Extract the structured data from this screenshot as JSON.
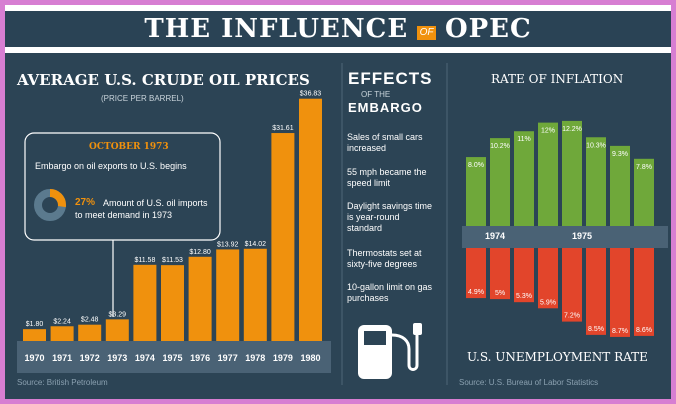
{
  "title": {
    "left": "THE INFLUENCE",
    "of": "OF",
    "right": "OPEC"
  },
  "oil": {
    "title": "AVERAGE U.S. CRUDE OIL PRICES",
    "subtitle": "(PRICE PER BARREL)",
    "source": "Source: British Petroleum",
    "callout": {
      "heading": "OCTOBER 1973",
      "text": "Embargo on oil exports to U.S. begins",
      "percent": "27%",
      "percent_text": "Amount of U.S. oil imports to meet demand in 1973"
    }
  },
  "effects": {
    "heading_line1": "EFFECTS",
    "heading_line2": "OF THE",
    "heading_line3": "EMBARGO",
    "items": [
      "Sales of small cars increased",
      "55 mph became the speed limit",
      "Daylight savings time is year-round standard",
      "Thermostats set at sixty-five degrees",
      "10-gallon limit on gas purchases"
    ]
  },
  "inflation": {
    "title": "RATE OF INFLATION",
    "unemployment_title": "U.S. UNEMPLOYMENT RATE",
    "source": "Source: U.S. Bureau of Labor Statistics",
    "year_labels": [
      "1974",
      "1975"
    ]
  },
  "colors": {
    "background": "#2c4455",
    "oil_bar": "#f0910d",
    "inflation_bar": "#6fa83a",
    "unemployment_bar": "#e2452b",
    "year_strip": "#4a6275",
    "border": "#d77ed2"
  },
  "chart_data": [
    {
      "type": "bar",
      "title": "AVERAGE U.S. CRUDE OIL PRICES",
      "ylabel": "Price per barrel",
      "categories": [
        "1970",
        "1971",
        "1972",
        "1973",
        "1974",
        "1975",
        "1976",
        "1977",
        "1978",
        "1979",
        "1980"
      ],
      "values": [
        1.8,
        2.24,
        2.48,
        3.29,
        11.58,
        11.53,
        12.8,
        13.92,
        14.02,
        31.61,
        36.83
      ],
      "labels": [
        "$1.80",
        "$2.24",
        "$2.48",
        "$3.29",
        "$11.58",
        "$11.53",
        "$12.80",
        "$13.92",
        "$14.02",
        "$31.61",
        "$36.83"
      ],
      "ylim": [
        0,
        38
      ]
    },
    {
      "type": "bar",
      "title": "RATE OF INFLATION",
      "values": [
        8.0,
        10.2,
        11,
        12,
        12.2,
        10.3,
        9.3,
        7.8
      ],
      "labels": [
        "8.0%",
        "10.2%",
        "11%",
        "12%",
        "12.2%",
        "10.3%",
        "9.3%",
        "7.8%"
      ],
      "ylim": [
        0,
        13
      ]
    },
    {
      "type": "bar",
      "title": "U.S. UNEMPLOYMENT RATE",
      "values": [
        4.9,
        5,
        5.3,
        5.9,
        7.2,
        8.5,
        8.7,
        8.6
      ],
      "labels": [
        "4.9%",
        "5%",
        "5.3%",
        "5.9%",
        "7.2%",
        "8.5%",
        "8.7%",
        "8.6%"
      ],
      "ylim": [
        0,
        9
      ]
    }
  ]
}
